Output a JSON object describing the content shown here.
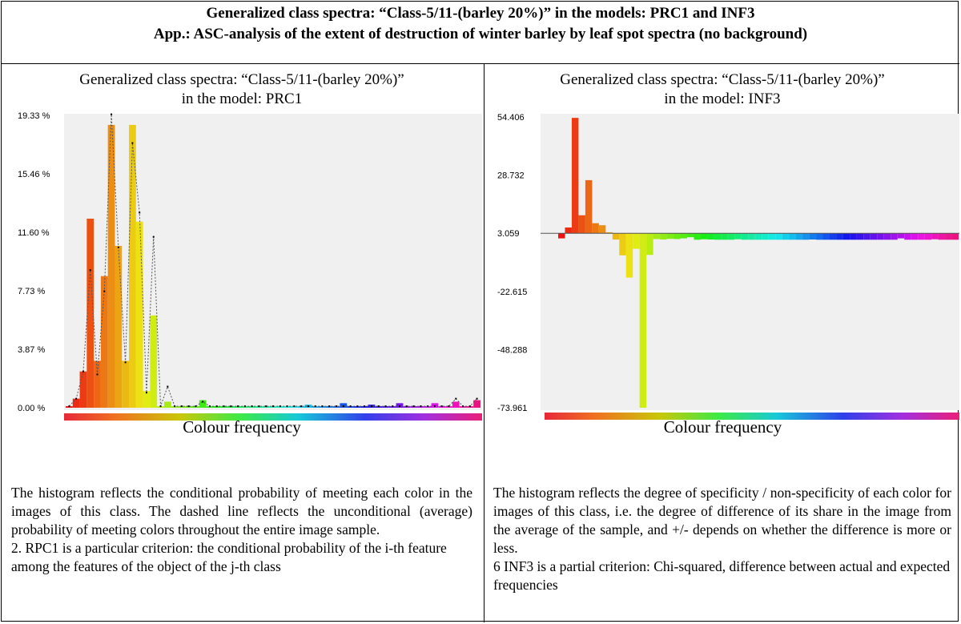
{
  "header": {
    "title_line1": "Generalized class spectra: “Class-5/11-(barley 20%)” in the models: PRC1 and INF3",
    "title_line2": "App.: ASC-analysis of the extent of destruction of winter barley by leaf spot spectra (no background)"
  },
  "left_panel": {
    "subtitle_line1": "Generalized class spectra: “Class-5/11-(barley 20%)”",
    "subtitle_line2": "in the model: PRC1",
    "xlabel": "Colour frequency",
    "description_p1": "The histogram reflects the conditional probability of meeting each color in the images of this class. The dashed line reflects the unconditional (average) probability of meeting colors throughout the entire image sample.",
    "description_p2": "2. RPC1 is a particular criterion: the conditional probability of the i-th feature among the features of the object of the j-th class"
  },
  "right_panel": {
    "subtitle_line1": "Generalized class spectra: “Class-5/11-(barley 20%)”",
    "subtitle_line2": "in the model: INF3",
    "xlabel": "Colour frequency",
    "description_p1": "The histogram reflects the degree of specificity / non-specificity of each color for images of this class, i.e. the degree of difference of its share in the image from the average of the sample, and +/- depends on whether the difference is more or less.",
    "description_p2": "6 INF3 is a partial criterion: Chi-squared, difference between actual and expected frequencies"
  },
  "chart_data": [
    {
      "type": "bar",
      "model": "PRC1",
      "y_ticks": [
        "0.00 %",
        "3.87 %",
        "7.73 %",
        "11.60 %",
        "15.46 %",
        "19.33 %"
      ],
      "y_tick_values": [
        0,
        3.87,
        7.73,
        11.6,
        15.46,
        19.33
      ],
      "ylim": [
        0,
        19.33
      ],
      "bar_values": [
        0.1,
        0.6,
        2.4,
        12.5,
        3.1,
        8.7,
        18.7,
        10.7,
        3.1,
        18.7,
        12.3,
        1.1,
        6.1,
        0.1,
        0.4,
        0.1,
        0.1,
        0.1,
        0.1,
        0.5,
        0.1,
        0.1,
        0.1,
        0.1,
        0.1,
        0.1,
        0.1,
        0.1,
        0.1,
        0.1,
        0.1,
        0.1,
        0.1,
        0.1,
        0.2,
        0.1,
        0.1,
        0.1,
        0.1,
        0.3,
        0.1,
        0.1,
        0.1,
        0.2,
        0.1,
        0.1,
        0.1,
        0.3,
        0.1,
        0.1,
        0.1,
        0.1,
        0.3,
        0.1,
        0.1,
        0.4,
        0.1,
        0.1,
        0.5
      ],
      "line_values": [
        0.1,
        0.6,
        2.4,
        9.1,
        2.2,
        7.7,
        19.4,
        10.6,
        3.0,
        17.5,
        12.9,
        1.0,
        11.3,
        0.1,
        1.4,
        0.1,
        0.1,
        0.1,
        0.1,
        0.4,
        0.1,
        0.1,
        0.1,
        0.1,
        0.1,
        0.1,
        0.1,
        0.1,
        0.1,
        0.1,
        0.1,
        0.1,
        0.1,
        0.1,
        0.1,
        0.1,
        0.1,
        0.1,
        0.1,
        0.1,
        0.1,
        0.1,
        0.1,
        0.1,
        0.1,
        0.1,
        0.1,
        0.1,
        0.1,
        0.1,
        0.1,
        0.1,
        0.1,
        0.1,
        0.1,
        0.6,
        0.1,
        0.1,
        0.6
      ],
      "grid": false
    },
    {
      "type": "bar",
      "model": "INF3",
      "y_ticks": [
        "54.406",
        "28.732",
        "3.059",
        "-22.615",
        "-48.288",
        "-73.961"
      ],
      "y_tick_values": [
        54.406,
        28.732,
        3.059,
        -22.615,
        -48.288,
        -73.961
      ],
      "ylim": [
        -73.961,
        54.406
      ],
      "bar_values": [
        0.8,
        5.6,
        54.0,
        11.0,
        26.5,
        7.5,
        6.6,
        3.5,
        0.3,
        -6.7,
        -16.5,
        -3.8,
        -73.961,
        -6.5,
        0.5,
        0.3,
        0.6,
        0.5,
        0.8,
        1.3,
        0.2,
        0.4,
        0.3,
        0.2,
        0.2,
        0.2,
        0.4,
        0.2,
        0.2,
        0.2,
        0.2,
        0.2,
        0.2,
        0.2,
        0.2,
        0.2,
        0.2,
        0.3,
        0.2,
        0.2,
        0.2,
        0.2,
        0.2,
        0.2,
        0.2,
        0.2,
        0.2,
        0.2,
        0.2,
        0.2,
        0.8,
        0.2,
        0.2,
        0.2,
        0.2,
        0.4,
        0.2,
        0.2,
        0.2
      ],
      "grid": false
    }
  ]
}
